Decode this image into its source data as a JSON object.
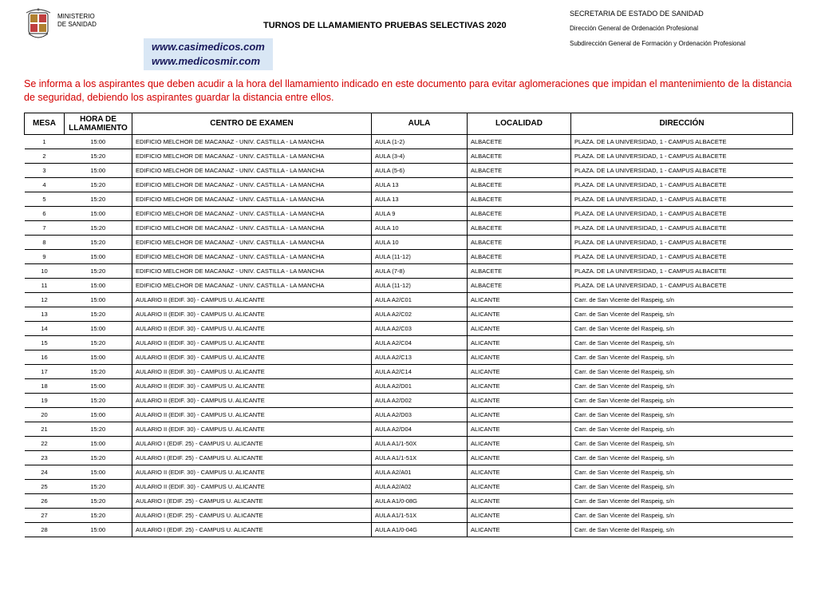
{
  "header": {
    "ministry_line1": "MINISTERIO",
    "ministry_line2": "DE SANIDAD",
    "title": "TURNOS DE LLAMAMIENTO PRUEBAS SELECTIVAS 2020",
    "secretaria": "SECRETARIA DE ESTADO DE SANIDAD",
    "direccion_general": "Dirección  General  de Ordenación Profesional",
    "subdireccion": "Subdirección General de Formación  y Ordenación Profesional",
    "watermark1": "www.casimedicos.com",
    "watermark2": "www.medicosmir.com"
  },
  "notice": "Se informa a los aspirantes que deben acudir a la hora del llamamiento indicado en este documento para evitar aglomeraciones que impidan el mantenimiento de la distancia de seguridad, debiendo los aspirantes guardar la distancia entre ellos.",
  "columns": {
    "mesa": "MESA",
    "hora": "HORA DE LLAMAMIENTO",
    "centro": "CENTRO DE EXAMEN",
    "aula": "AULA",
    "localidad": "LOCALIDAD",
    "direccion": "DIRECCIÓN"
  },
  "rows": [
    {
      "mesa": "1",
      "hora": "15:00",
      "centro": "EDIFICIO MELCHOR DE MACANAZ - UNIV. CASTILLA - LA MANCHA",
      "aula": "AULA (1-2)",
      "loc": "ALBACETE",
      "dir": "PLAZA. DE LA UNIVERSIDAD, 1 - CAMPUS ALBACETE"
    },
    {
      "mesa": "2",
      "hora": "15:20",
      "centro": "EDIFICIO MELCHOR DE MACANAZ - UNIV. CASTILLA - LA MANCHA",
      "aula": "AULA (3-4)",
      "loc": "ALBACETE",
      "dir": "PLAZA. DE LA UNIVERSIDAD, 1 - CAMPUS ALBACETE"
    },
    {
      "mesa": "3",
      "hora": "15:00",
      "centro": "EDIFICIO MELCHOR DE MACANAZ - UNIV. CASTILLA - LA MANCHA",
      "aula": "AULA (5-6)",
      "loc": "ALBACETE",
      "dir": "PLAZA. DE LA UNIVERSIDAD, 1 - CAMPUS ALBACETE"
    },
    {
      "mesa": "4",
      "hora": "15:20",
      "centro": "EDIFICIO MELCHOR DE MACANAZ - UNIV. CASTILLA - LA MANCHA",
      "aula": "AULA 13",
      "loc": "ALBACETE",
      "dir": "PLAZA. DE LA UNIVERSIDAD, 1 - CAMPUS ALBACETE"
    },
    {
      "mesa": "5",
      "hora": "15:20",
      "centro": "EDIFICIO MELCHOR DE MACANAZ - UNIV. CASTILLA - LA MANCHA",
      "aula": "AULA 13",
      "loc": "ALBACETE",
      "dir": "PLAZA. DE LA UNIVERSIDAD, 1 - CAMPUS ALBACETE"
    },
    {
      "mesa": "6",
      "hora": "15:00",
      "centro": "EDIFICIO MELCHOR DE MACANAZ - UNIV. CASTILLA - LA MANCHA",
      "aula": "AULA 9",
      "loc": "ALBACETE",
      "dir": "PLAZA. DE LA UNIVERSIDAD, 1 - CAMPUS ALBACETE"
    },
    {
      "mesa": "7",
      "hora": "15:20",
      "centro": "EDIFICIO MELCHOR DE MACANAZ - UNIV. CASTILLA - LA MANCHA",
      "aula": "AULA 10",
      "loc": "ALBACETE",
      "dir": "PLAZA. DE LA UNIVERSIDAD, 1 - CAMPUS ALBACETE"
    },
    {
      "mesa": "8",
      "hora": "15:20",
      "centro": "EDIFICIO MELCHOR DE MACANAZ - UNIV. CASTILLA - LA MANCHA",
      "aula": "AULA 10",
      "loc": "ALBACETE",
      "dir": "PLAZA. DE LA UNIVERSIDAD, 1 - CAMPUS ALBACETE"
    },
    {
      "mesa": "9",
      "hora": "15:00",
      "centro": "EDIFICIO MELCHOR DE MACANAZ - UNIV. CASTILLA - LA MANCHA",
      "aula": "AULA (11-12)",
      "loc": "ALBACETE",
      "dir": "PLAZA. DE LA UNIVERSIDAD, 1 - CAMPUS ALBACETE"
    },
    {
      "mesa": "10",
      "hora": "15:20",
      "centro": "EDIFICIO MELCHOR DE MACANAZ - UNIV. CASTILLA - LA MANCHA",
      "aula": "AULA (7-8)",
      "loc": "ALBACETE",
      "dir": "PLAZA. DE LA UNIVERSIDAD, 1 - CAMPUS ALBACETE"
    },
    {
      "mesa": "11",
      "hora": "15:00",
      "centro": "EDIFICIO MELCHOR DE MACANAZ - UNIV. CASTILLA - LA MANCHA",
      "aula": "AULA (11-12)",
      "loc": "ALBACETE",
      "dir": "PLAZA. DE LA UNIVERSIDAD, 1 - CAMPUS ALBACETE"
    },
    {
      "mesa": "12",
      "hora": "15:00",
      "centro": "AULARIO II (EDIF. 30) - CAMPUS U. ALICANTE",
      "aula": "AULA A2/C01",
      "loc": "ALICANTE",
      "dir": "Carr. de San Vicente del Raspeig, s/n"
    },
    {
      "mesa": "13",
      "hora": "15:20",
      "centro": "AULARIO II (EDIF. 30) - CAMPUS U. ALICANTE",
      "aula": "AULA A2/C02",
      "loc": "ALICANTE",
      "dir": "Carr. de San Vicente del Raspeig, s/n"
    },
    {
      "mesa": "14",
      "hora": "15:00",
      "centro": "AULARIO II (EDIF. 30) - CAMPUS U. ALICANTE",
      "aula": "AULA A2/C03",
      "loc": "ALICANTE",
      "dir": "Carr. de San Vicente del Raspeig, s/n"
    },
    {
      "mesa": "15",
      "hora": "15:20",
      "centro": "AULARIO II (EDIF. 30) - CAMPUS U. ALICANTE",
      "aula": "AULA A2/C04",
      "loc": "ALICANTE",
      "dir": "Carr. de San Vicente del Raspeig, s/n"
    },
    {
      "mesa": "16",
      "hora": "15:00",
      "centro": "AULARIO II (EDIF. 30) - CAMPUS U. ALICANTE",
      "aula": "AULA A2/C13",
      "loc": "ALICANTE",
      "dir": "Carr. de San Vicente del Raspeig, s/n"
    },
    {
      "mesa": "17",
      "hora": "15:20",
      "centro": "AULARIO II (EDIF. 30) - CAMPUS U. ALICANTE",
      "aula": "AULA A2/C14",
      "loc": "ALICANTE",
      "dir": "Carr. de San Vicente del Raspeig, s/n"
    },
    {
      "mesa": "18",
      "hora": "15:00",
      "centro": "AULARIO II (EDIF. 30) - CAMPUS U. ALICANTE",
      "aula": "AULA A2/D01",
      "loc": "ALICANTE",
      "dir": "Carr. de San Vicente del Raspeig, s/n"
    },
    {
      "mesa": "19",
      "hora": "15:20",
      "centro": "AULARIO II (EDIF. 30) - CAMPUS U. ALICANTE",
      "aula": "AULA A2/D02",
      "loc": "ALICANTE",
      "dir": "Carr. de San Vicente del Raspeig, s/n"
    },
    {
      "mesa": "20",
      "hora": "15:00",
      "centro": "AULARIO II (EDIF. 30) - CAMPUS U. ALICANTE",
      "aula": "AULA A2/D03",
      "loc": "ALICANTE",
      "dir": "Carr. de San Vicente del Raspeig, s/n"
    },
    {
      "mesa": "21",
      "hora": "15:20",
      "centro": "AULARIO II (EDIF. 30) - CAMPUS U. ALICANTE",
      "aula": "AULA A2/D04",
      "loc": "ALICANTE",
      "dir": "Carr. de San Vicente del Raspeig, s/n"
    },
    {
      "mesa": "22",
      "hora": "15:00",
      "centro": "AULARIO I (EDIF. 25) - CAMPUS U. ALICANTE",
      "aula": "AULA A1/1-50X",
      "loc": "ALICANTE",
      "dir": "Carr. de San Vicente del Raspeig, s/n"
    },
    {
      "mesa": "23",
      "hora": "15:20",
      "centro": "AULARIO I (EDIF. 25) - CAMPUS U. ALICANTE",
      "aula": "AULA A1/1-51X",
      "loc": "ALICANTE",
      "dir": "Carr. de San Vicente del Raspeig, s/n"
    },
    {
      "mesa": "24",
      "hora": "15:00",
      "centro": "AULARIO II (EDIF. 30) - CAMPUS U. ALICANTE",
      "aula": "AULA A2/A01",
      "loc": "ALICANTE",
      "dir": "Carr. de San Vicente del Raspeig, s/n"
    },
    {
      "mesa": "25",
      "hora": "15:20",
      "centro": "AULARIO II (EDIF. 30) - CAMPUS U. ALICANTE",
      "aula": "AULA A2/A02",
      "loc": "ALICANTE",
      "dir": "Carr. de San Vicente del Raspeig, s/n"
    },
    {
      "mesa": "26",
      "hora": "15:20",
      "centro": "AULARIO I (EDIF. 25) - CAMPUS U. ALICANTE",
      "aula": "AULA A1/0-08G",
      "loc": "ALICANTE",
      "dir": "Carr. de San Vicente del Raspeig, s/n"
    },
    {
      "mesa": "27",
      "hora": "15:20",
      "centro": "AULARIO I (EDIF. 25) - CAMPUS U. ALICANTE",
      "aula": "AULA A1/1-51X",
      "loc": "ALICANTE",
      "dir": "Carr. de San Vicente del Raspeig, s/n"
    },
    {
      "mesa": "28",
      "hora": "15:00",
      "centro": "AULARIO I (EDIF. 25) - CAMPUS U. ALICANTE",
      "aula": "AULA A1/0-04G",
      "loc": "ALICANTE",
      "dir": "Carr. de San Vicente del Raspeig, s/n"
    }
  ]
}
